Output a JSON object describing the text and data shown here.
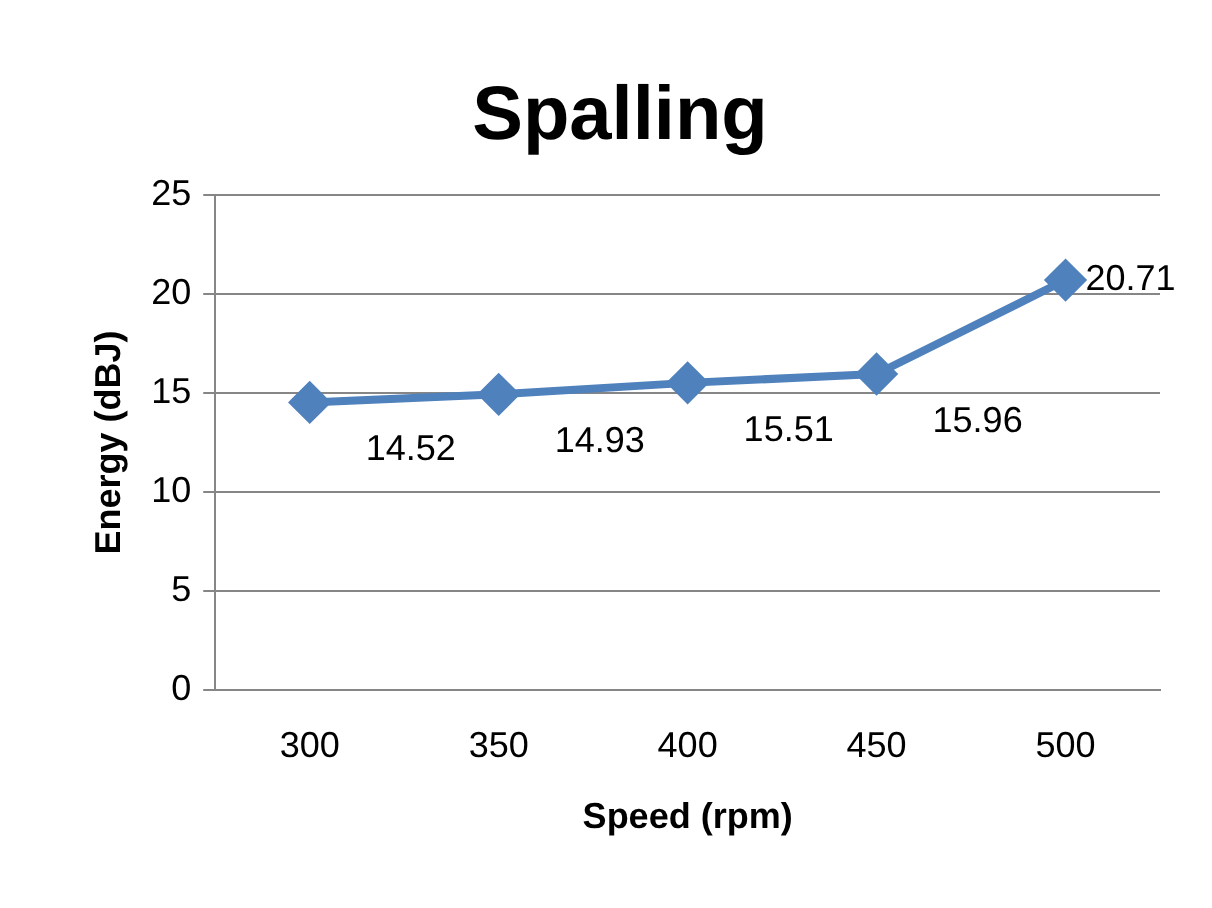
{
  "chart_data": {
    "type": "line",
    "title": "Spalling",
    "xlabel": "Speed (rpm)",
    "ylabel": "Energy (dBJ)",
    "categories": [
      "300",
      "350",
      "400",
      "450",
      "500"
    ],
    "series": [
      {
        "color": "#4f81bd",
        "values": [
          14.52,
          14.93,
          15.51,
          15.96,
          20.71
        ]
      }
    ],
    "ylim": [
      0,
      25
    ],
    "yticks": [
      0,
      5,
      10,
      15,
      20,
      25
    ],
    "grid": "y",
    "legend": false,
    "marker": "diamond",
    "line_style": "solid",
    "data_labels": true
  }
}
